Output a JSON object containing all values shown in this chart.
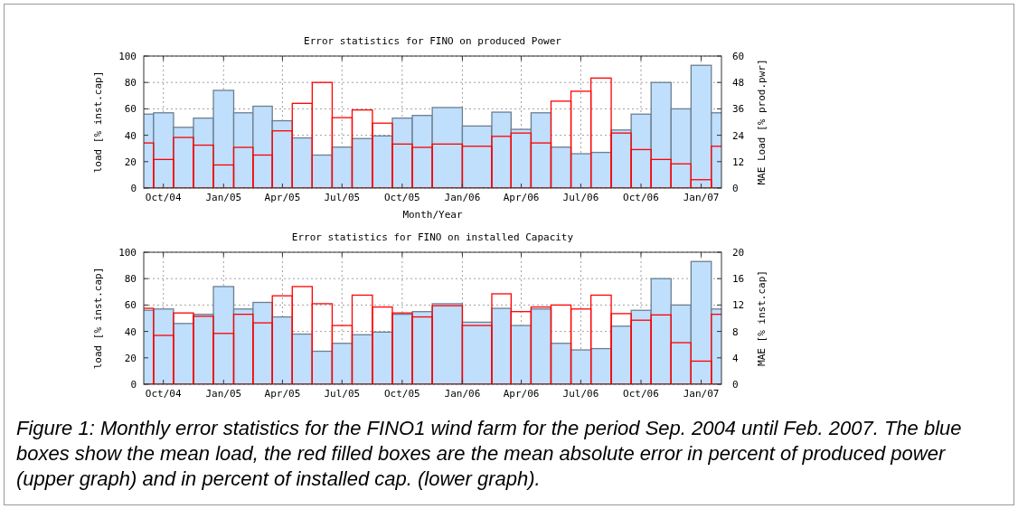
{
  "chart_data": [
    {
      "type": "bar",
      "title": "Error statistics for FINO on produced Power",
      "xlabel": "Month/Year",
      "ylabel": "load [% inst.cap]",
      "y2label": "MAE Load [% prod.pwr]",
      "x": [
        "2004-09-01",
        "2004-10-01",
        "2004-11-01",
        "2004-12-01",
        "2005-01-01",
        "2005-02-01",
        "2005-03-01",
        "2005-04-01",
        "2005-05-01",
        "2005-06-01",
        "2005-07-01",
        "2005-08-01",
        "2005-09-01",
        "2005-10-01",
        "2005-11-01",
        "2005-12-01",
        "2006-02-01",
        "2006-03-01",
        "2006-04-01",
        "2006-05-01",
        "2006-06-01",
        "2006-07-01",
        "2006-08-01",
        "2006-09-01",
        "2006-10-01",
        "2006-11-01",
        "2006-12-01",
        "2007-01-01",
        "2007-02-01"
      ],
      "xlim": [
        "2004-09-01",
        "2007-02-01"
      ],
      "xticks": [
        {
          "value": "2004-10-01",
          "label": "Oct/04"
        },
        {
          "value": "2005-01-01",
          "label": "Jan/05"
        },
        {
          "value": "2005-04-01",
          "label": "Apr/05"
        },
        {
          "value": "2005-07-01",
          "label": "Jul/05"
        },
        {
          "value": "2005-10-01",
          "label": "Oct/05"
        },
        {
          "value": "2006-01-01",
          "label": "Jan/06"
        },
        {
          "value": "2006-04-01",
          "label": "Apr/06"
        },
        {
          "value": "2006-07-01",
          "label": "Jul/06"
        },
        {
          "value": "2006-10-01",
          "label": "Oct/06"
        },
        {
          "value": "2007-01-01",
          "label": "Jan/07"
        }
      ],
      "ylim": [
        0,
        100
      ],
      "yticks": [
        0,
        20,
        40,
        60,
        80,
        100
      ],
      "y2lim": [
        0,
        60
      ],
      "y2ticks": [
        0,
        12,
        24,
        36,
        48,
        60
      ],
      "grid": true,
      "series": [
        {
          "color": "#bfdffd",
          "values": [
            56,
            57,
            46,
            53,
            74,
            57,
            62,
            51,
            38,
            25,
            31,
            37.5,
            39.5,
            53,
            55,
            61,
            47,
            57.5,
            44.5,
            57,
            31,
            26,
            27,
            44,
            56,
            80,
            60,
            93,
            57
          ]
        },
        {
          "color": "#ff0000",
          "axis": "y2",
          "values": [
            20.5,
            13,
            23,
            19.5,
            10.5,
            18.5,
            15,
            26,
            38.5,
            48,
            32,
            35.5,
            29.5,
            20,
            18.5,
            20,
            19,
            23.5,
            25,
            20.5,
            39.5,
            44,
            50,
            25,
            17.5,
            13,
            11,
            3.8,
            19
          ]
        }
      ]
    },
    {
      "type": "bar",
      "title": "Error statistics for FINO on installed Capacity",
      "ylabel": "load [% inst.cap]",
      "y2label": "MAE [% inst.cap]",
      "x": [
        "2004-09-01",
        "2004-10-01",
        "2004-11-01",
        "2004-12-01",
        "2005-01-01",
        "2005-02-01",
        "2005-03-01",
        "2005-04-01",
        "2005-05-01",
        "2005-06-01",
        "2005-07-01",
        "2005-08-01",
        "2005-09-01",
        "2005-10-01",
        "2005-11-01",
        "2005-12-01",
        "2006-02-01",
        "2006-03-01",
        "2006-04-01",
        "2006-05-01",
        "2006-06-01",
        "2006-07-01",
        "2006-08-01",
        "2006-09-01",
        "2006-10-01",
        "2006-11-01",
        "2006-12-01",
        "2007-01-01",
        "2007-02-01"
      ],
      "xlim": [
        "2004-09-01",
        "2007-02-01"
      ],
      "xticks": [
        {
          "value": "2004-10-01",
          "label": "Oct/04"
        },
        {
          "value": "2005-01-01",
          "label": "Jan/05"
        },
        {
          "value": "2005-04-01",
          "label": "Apr/05"
        },
        {
          "value": "2005-07-01",
          "label": "Jul/05"
        },
        {
          "value": "2005-10-01",
          "label": "Oct/05"
        },
        {
          "value": "2006-01-01",
          "label": "Jan/06"
        },
        {
          "value": "2006-04-01",
          "label": "Apr/06"
        },
        {
          "value": "2006-07-01",
          "label": "Jul/06"
        },
        {
          "value": "2006-10-01",
          "label": "Oct/06"
        },
        {
          "value": "2007-01-01",
          "label": "Jan/07"
        }
      ],
      "ylim": [
        0,
        100
      ],
      "yticks": [
        0,
        20,
        40,
        60,
        80,
        100
      ],
      "y2lim": [
        0,
        20
      ],
      "y2ticks": [
        0,
        4,
        8,
        12,
        16,
        20
      ],
      "grid": true,
      "series": [
        {
          "color": "#bfdffd",
          "values": [
            56,
            57,
            46,
            53,
            74,
            57,
            62,
            51,
            38,
            25,
            31,
            37.5,
            39.5,
            53,
            55,
            61,
            47,
            57.5,
            44.5,
            57,
            31,
            26,
            27,
            44,
            56,
            80,
            60,
            93,
            57
          ]
        },
        {
          "color": "#ff0000",
          "axis": "y2",
          "values": [
            11.5,
            7.4,
            10.8,
            10.3,
            7.7,
            10.6,
            9.3,
            13.4,
            14.8,
            12.2,
            8.9,
            13.5,
            11.7,
            10.8,
            10.2,
            11.9,
            8.9,
            13.7,
            11,
            11.7,
            12,
            11.4,
            13.5,
            10.7,
            9.7,
            10.5,
            6.3,
            3.5,
            10.6
          ]
        }
      ],
      "annotations": [
        "Figure 1: Monthly error statistics for the FINO1 wind farm for the period Sep. 2004 until Feb. 2007. The blue boxes show the mean load, the red filled boxes are the mean absolute error in percent of produced power (upper graph) and in percent of installed cap. (lower graph)."
      ]
    }
  ]
}
